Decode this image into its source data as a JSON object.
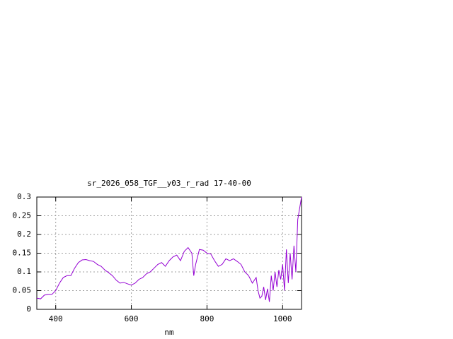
{
  "chart_data": {
    "type": "line",
    "title": "sr_2026_058_TGF__y03_r_rad 17-40-00",
    "xlabel": "nm",
    "xlim": [
      350,
      1050
    ],
    "xticks": [
      400,
      600,
      800,
      1000
    ],
    "ylim": [
      0,
      0.3
    ],
    "yticks": [
      0,
      0.05,
      0.1,
      0.15,
      0.2,
      0.25,
      0.3
    ],
    "grid": true,
    "series": [
      {
        "color": "#9400d3",
        "x": [
          350,
          360,
          370,
          380,
          390,
          400,
          410,
          420,
          430,
          440,
          450,
          460,
          470,
          480,
          490,
          500,
          510,
          520,
          530,
          540,
          550,
          560,
          570,
          580,
          590,
          600,
          610,
          620,
          630,
          640,
          650,
          660,
          670,
          680,
          690,
          700,
          710,
          720,
          730,
          740,
          750,
          760,
          765,
          770,
          780,
          790,
          800,
          810,
          820,
          830,
          840,
          850,
          860,
          870,
          880,
          890,
          900,
          910,
          920,
          930,
          935,
          940,
          945,
          950,
          955,
          960,
          965,
          970,
          975,
          980,
          985,
          990,
          995,
          1000,
          1005,
          1010,
          1015,
          1020,
          1025,
          1030,
          1035,
          1040,
          1045,
          1050
        ],
        "values": [
          0.03,
          0.028,
          0.038,
          0.04,
          0.04,
          0.05,
          0.07,
          0.085,
          0.09,
          0.09,
          0.11,
          0.125,
          0.132,
          0.133,
          0.13,
          0.128,
          0.12,
          0.115,
          0.105,
          0.098,
          0.09,
          0.078,
          0.07,
          0.072,
          0.068,
          0.065,
          0.07,
          0.08,
          0.085,
          0.095,
          0.1,
          0.11,
          0.12,
          0.125,
          0.115,
          0.13,
          0.14,
          0.145,
          0.13,
          0.155,
          0.165,
          0.15,
          0.09,
          0.12,
          0.16,
          0.158,
          0.15,
          0.148,
          0.13,
          0.115,
          0.12,
          0.135,
          0.13,
          0.135,
          0.128,
          0.12,
          0.1,
          0.09,
          0.07,
          0.085,
          0.05,
          0.03,
          0.035,
          0.06,
          0.025,
          0.055,
          0.02,
          0.09,
          0.05,
          0.1,
          0.06,
          0.105,
          0.08,
          0.12,
          0.05,
          0.16,
          0.07,
          0.15,
          0.08,
          0.17,
          0.1,
          0.24,
          0.27,
          0.3
        ]
      }
    ]
  }
}
